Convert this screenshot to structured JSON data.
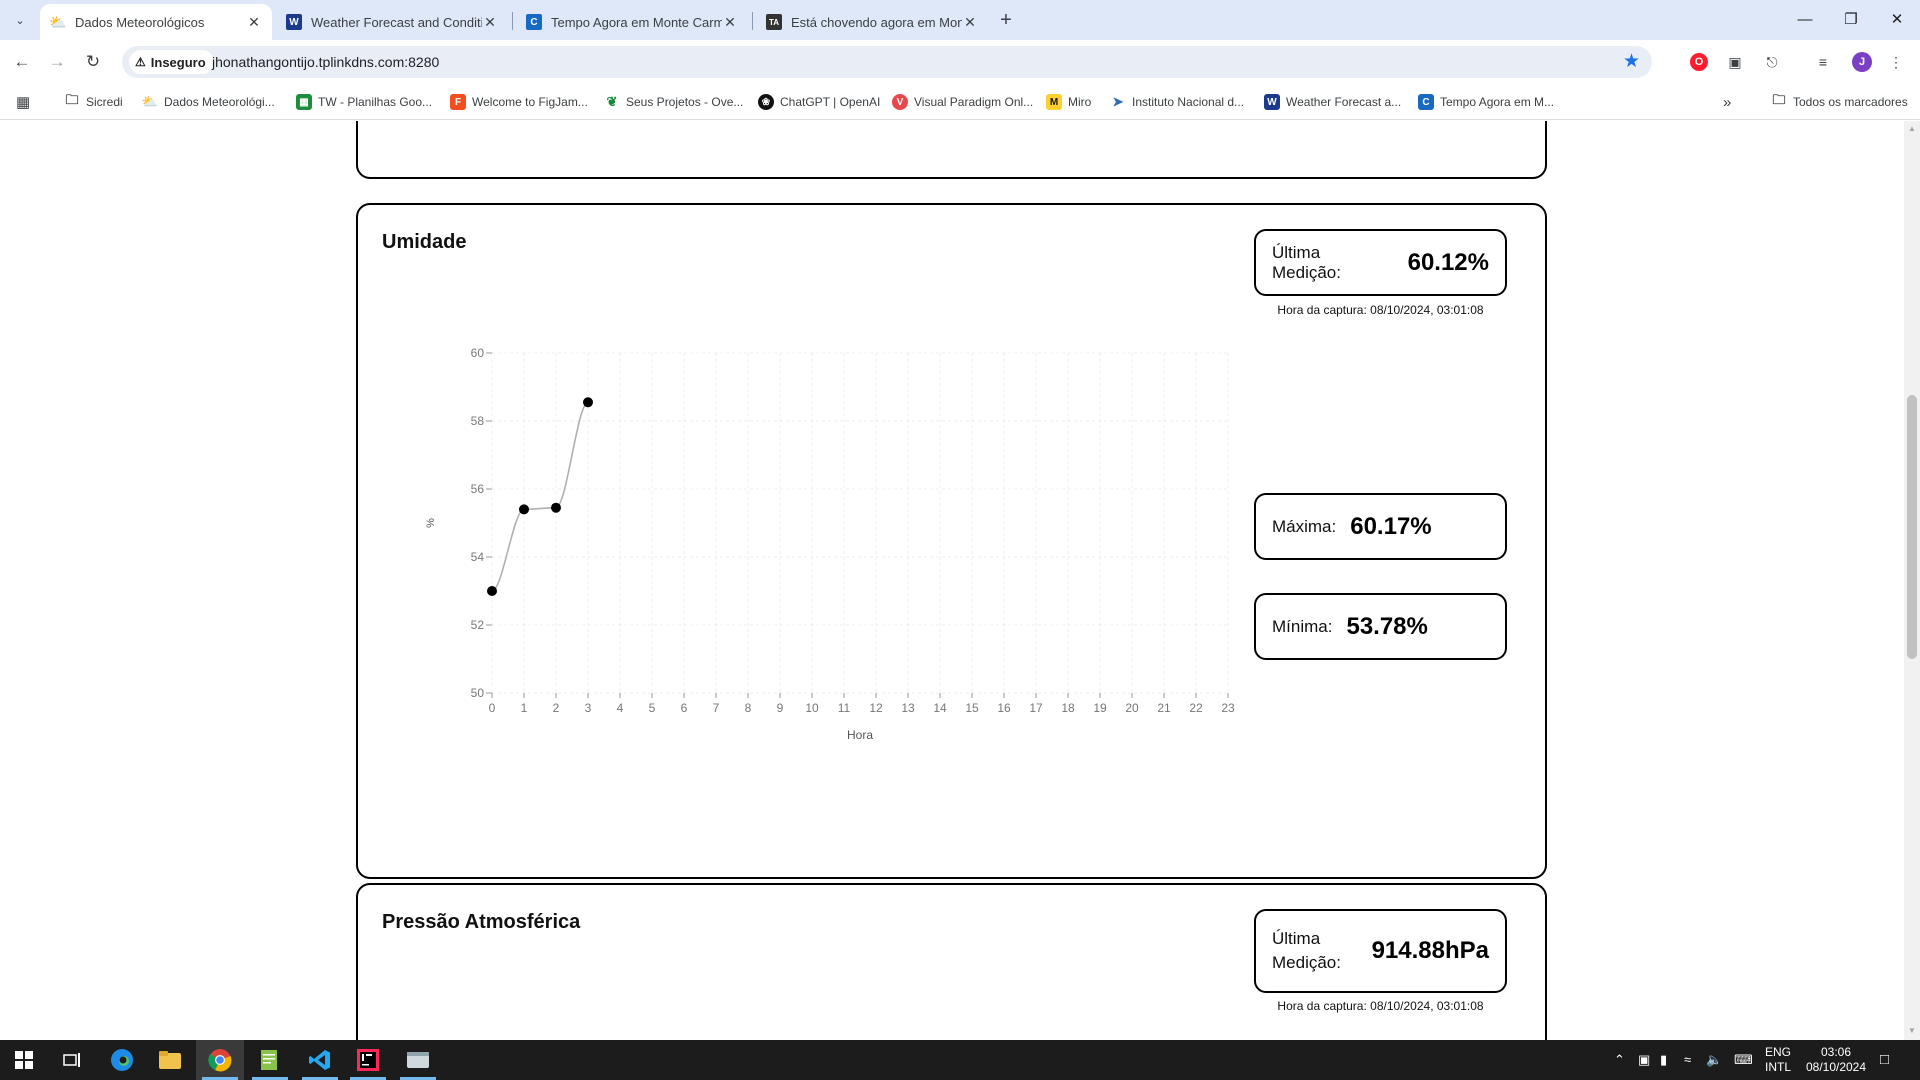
{
  "browser": {
    "tabs": [
      {
        "title": "Dados Meteorológicos",
        "active": true,
        "favicon": "sun-cloud-icon"
      },
      {
        "title": "Weather Forecast and Conditio",
        "active": false,
        "favicon": "weather-site-icon"
      },
      {
        "title": "Tempo Agora em Monte Carme",
        "active": false,
        "favicon": "climatempo-icon"
      },
      {
        "title": "Está chovendo agora em Monte",
        "active": false,
        "favicon": "ta-icon"
      }
    ],
    "security_label": "Inseguro",
    "url": "jhonathangontijo.tplinkdns.com:8280",
    "profile_initial": "J",
    "bookmarks": [
      "Sicredi",
      "Dados Meteorológi...",
      "TW - Planilhas Goo...",
      "Welcome to FigJam...",
      "Seus Projetos - Ove...",
      "ChatGPT | OpenAI",
      "Visual Paradigm Onl...",
      "Miro",
      "Instituto Nacional d...",
      "Weather Forecast a...",
      "Tempo Agora em M..."
    ],
    "all_bookmarks": "Todos os marcadores"
  },
  "humidity": {
    "title": "Umidade",
    "last_label": "Última Medição:",
    "last_value": "60.12%",
    "capture_time": "Hora da captura: 08/10/2024, 03:01:08",
    "max_label": "Máxima:",
    "max_value": "60.17%",
    "min_label": "Mínima:",
    "min_value": "53.78%"
  },
  "pressure": {
    "title": "Pressão Atmosférica",
    "last_label": "Última Medição:",
    "last_value": "914.88hPa",
    "capture_time": "Hora da captura: 08/10/2024, 03:01:08"
  },
  "chart_data": {
    "type": "line",
    "title": "",
    "xlabel": "Hora",
    "ylabel": "%",
    "x": [
      0,
      1,
      2,
      3
    ],
    "values": [
      53.0,
      55.4,
      55.45,
      58.55
    ],
    "xticks": [
      "0",
      "1",
      "2",
      "3",
      "4",
      "5",
      "6",
      "7",
      "8",
      "9",
      "10",
      "11",
      "12",
      "13",
      "14",
      "15",
      "16",
      "17",
      "18",
      "19",
      "20",
      "21",
      "22",
      "23"
    ],
    "yticks": [
      "50",
      "52",
      "54",
      "56",
      "58",
      "60"
    ],
    "xlim": [
      0,
      23
    ],
    "ylim": [
      50,
      60
    ],
    "grid": true,
    "line_color": "#b0b0b0",
    "point_color": "#000000"
  },
  "taskbar": {
    "lang_top": "ENG",
    "lang_bottom": "INTL",
    "time": "03:06",
    "date": "08/10/2024"
  }
}
